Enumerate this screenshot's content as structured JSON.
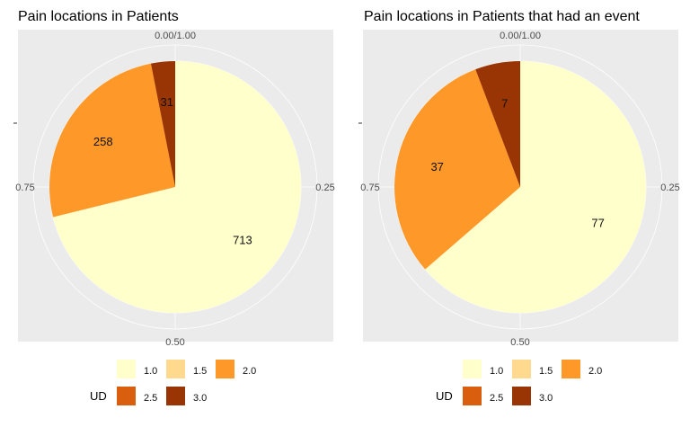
{
  "chart_data": [
    {
      "type": "pie",
      "title": "Pain locations in Patients",
      "theta_ticks": [
        "0.00/1.00",
        "0.25",
        "0.50",
        "0.75"
      ],
      "slices": [
        {
          "label": "1.0",
          "value": 713
        },
        {
          "label": "2.0",
          "value": 258
        },
        {
          "label": "3.0",
          "value": 31
        }
      ],
      "legend": {
        "title": "UD",
        "position": "bottom",
        "entries": [
          "1.0",
          "1.5",
          "2.0",
          "2.5",
          "3.0"
        ]
      }
    },
    {
      "type": "pie",
      "title": "Pain locations in Patients that had an event",
      "theta_ticks": [
        "0.00/1.00",
        "0.25",
        "0.50",
        "0.75"
      ],
      "slices": [
        {
          "label": "1.0",
          "value": 77
        },
        {
          "label": "2.0",
          "value": 37
        },
        {
          "label": "3.0",
          "value": 7
        }
      ],
      "legend": {
        "title": "UD",
        "position": "bottom",
        "entries": [
          "1.0",
          "1.5",
          "2.0",
          "2.5",
          "3.0"
        ]
      }
    }
  ],
  "colors": {
    "1.0": "#FFFFCC",
    "1.5": "#FED98E",
    "2.0": "#FE9929",
    "2.5": "#D95F0E",
    "3.0": "#993404",
    "panel": "#EBEBEB",
    "grid": "#FFFFFF"
  }
}
